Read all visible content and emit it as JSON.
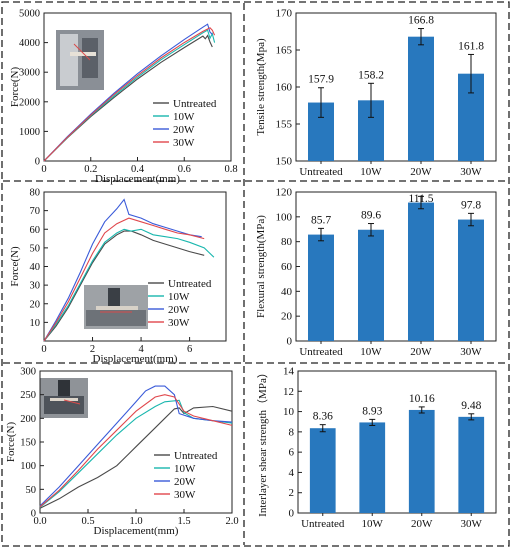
{
  "colors": {
    "bar": "#2878be",
    "untreated": "#4a4a4a",
    "w10": "#19b7ae",
    "w20": "#3a5bd9",
    "w30": "#e0474c",
    "frame": "#222222"
  },
  "chart_data": [
    {
      "type": "line",
      "xlabel": "Displacement(mm)",
      "ylabel": "Force(N)",
      "xlim": [
        0,
        0.8
      ],
      "ylim": [
        0,
        5000
      ],
      "xticks": [
        "0",
        "0.2",
        "0.4",
        "0.6",
        "0.8"
      ],
      "yticks": [
        "0",
        "1000",
        "2000",
        "3000",
        "4000",
        "5000"
      ],
      "legend_position": "bottom-right",
      "series": [
        {
          "name": "Untreated",
          "color_key": "untreated",
          "points": [
            [
              0,
              0
            ],
            [
              0.1,
              780
            ],
            [
              0.2,
              1500
            ],
            [
              0.3,
              2150
            ],
            [
              0.4,
              2770
            ],
            [
              0.5,
              3330
            ],
            [
              0.6,
              3830
            ],
            [
              0.68,
              4220
            ],
            [
              0.69,
              4130
            ],
            [
              0.7,
              4240
            ],
            [
              0.71,
              4020
            ],
            [
              0.72,
              3850
            ]
          ]
        },
        {
          "name": "10W",
          "color_key": "w10",
          "points": [
            [
              0,
              0
            ],
            [
              0.1,
              790
            ],
            [
              0.2,
              1530
            ],
            [
              0.3,
              2200
            ],
            [
              0.4,
              2830
            ],
            [
              0.5,
              3420
            ],
            [
              0.6,
              3930
            ],
            [
              0.68,
              4330
            ],
            [
              0.7,
              4420
            ],
            [
              0.71,
              4150
            ],
            [
              0.72,
              4300
            ],
            [
              0.73,
              4000
            ]
          ]
        },
        {
          "name": "20W",
          "color_key": "w20",
          "points": [
            [
              0,
              0
            ],
            [
              0.1,
              820
            ],
            [
              0.2,
              1580
            ],
            [
              0.3,
              2290
            ],
            [
              0.4,
              2950
            ],
            [
              0.5,
              3550
            ],
            [
              0.6,
              4100
            ],
            [
              0.68,
              4520
            ],
            [
              0.7,
              4620
            ],
            [
              0.71,
              4350
            ],
            [
              0.72,
              4280
            ]
          ]
        },
        {
          "name": "30W",
          "color_key": "w30",
          "points": [
            [
              0,
              0
            ],
            [
              0.1,
              800
            ],
            [
              0.2,
              1550
            ],
            [
              0.3,
              2250
            ],
            [
              0.4,
              2890
            ],
            [
              0.5,
              3480
            ],
            [
              0.6,
              4000
            ],
            [
              0.68,
              4380
            ],
            [
              0.71,
              4500
            ],
            [
              0.72,
              4420
            ],
            [
              0.73,
              4250
            ]
          ]
        }
      ]
    },
    {
      "type": "bar",
      "ylabel": "Tensile strength(Mpa)",
      "categories": [
        "Untreated",
        "10W",
        "20W",
        "30W"
      ],
      "values": [
        157.9,
        158.2,
        166.8,
        161.8
      ],
      "errors": [
        2.0,
        2.3,
        1.1,
        2.6
      ],
      "value_labels": [
        "157.9",
        "158.2",
        "166.8",
        "161.8"
      ],
      "ylim": [
        150,
        170
      ],
      "yticks": [
        "150",
        "155",
        "160",
        "165",
        "170"
      ]
    },
    {
      "type": "line",
      "xlabel": "Displacement(mm)",
      "ylabel": "Force(N)",
      "xlim": [
        0,
        7.5
      ],
      "ylim": [
        0,
        80
      ],
      "xticks": [
        "0",
        "2",
        "4",
        "6"
      ],
      "yticks": [
        "10",
        "20",
        "30",
        "40",
        "50",
        "60",
        "70",
        "80"
      ],
      "legend_position": "bottom-right",
      "series": [
        {
          "name": "Untreated",
          "color_key": "untreated",
          "points": [
            [
              0,
              0
            ],
            [
              0.5,
              8
            ],
            [
              1,
              18
            ],
            [
              1.5,
              30
            ],
            [
              2,
              42
            ],
            [
              2.5,
              52
            ],
            [
              3,
              57
            ],
            [
              3.3,
              59
            ],
            [
              3.6,
              59
            ],
            [
              4,
              57
            ],
            [
              4.5,
              54
            ],
            [
              5,
              52
            ],
            [
              5.5,
              50
            ],
            [
              6,
              48
            ],
            [
              6.6,
              46
            ]
          ]
        },
        {
          "name": "10W",
          "color_key": "w10",
          "points": [
            [
              0,
              0
            ],
            [
              0.5,
              9
            ],
            [
              1,
              19
            ],
            [
              1.5,
              31
            ],
            [
              2,
              43
            ],
            [
              2.5,
              53
            ],
            [
              3,
              58
            ],
            [
              3.3,
              60
            ],
            [
              3.6,
              59
            ],
            [
              4,
              60
            ],
            [
              4.5,
              57
            ],
            [
              5,
              56
            ],
            [
              5.5,
              55
            ],
            [
              6,
              53
            ],
            [
              6.6,
              50
            ],
            [
              7,
              45
            ]
          ]
        },
        {
          "name": "20W",
          "color_key": "w20",
          "points": [
            [
              0,
              0
            ],
            [
              0.5,
              11
            ],
            [
              1,
              23
            ],
            [
              1.5,
              37
            ],
            [
              2,
              52
            ],
            [
              2.5,
              64
            ],
            [
              3,
              71
            ],
            [
              3.3,
              76
            ],
            [
              3.5,
              68
            ],
            [
              4,
              66
            ],
            [
              4.5,
              63
            ],
            [
              5,
              61
            ],
            [
              5.5,
              59
            ],
            [
              6,
              57
            ],
            [
              6.5,
              56
            ]
          ]
        },
        {
          "name": "30W",
          "color_key": "w30",
          "points": [
            [
              0,
              0
            ],
            [
              0.5,
              10
            ],
            [
              1,
              21
            ],
            [
              1.5,
              34
            ],
            [
              2,
              47
            ],
            [
              2.5,
              58
            ],
            [
              3,
              63
            ],
            [
              3.5,
              66
            ],
            [
              4,
              64
            ],
            [
              4.5,
              62
            ],
            [
              5,
              60
            ],
            [
              5.5,
              58
            ],
            [
              6,
              57
            ],
            [
              6.6,
              55
            ]
          ]
        }
      ]
    },
    {
      "type": "bar",
      "ylabel": "Flexural strength(MPa)",
      "categories": [
        "Untreated",
        "10W",
        "20W",
        "30W"
      ],
      "values": [
        85.7,
        89.6,
        111.5,
        97.8
      ],
      "errors": [
        5,
        5,
        5,
        5
      ],
      "value_labels": [
        "85.7",
        "89.6",
        "111.5",
        "97.8"
      ],
      "ylim": [
        0,
        120
      ],
      "yticks": [
        "0",
        "20",
        "40",
        "60",
        "80",
        "100",
        "120"
      ]
    },
    {
      "type": "line",
      "xlabel": "Displacement(mm)",
      "ylabel": "Force(N)",
      "xlim": [
        0,
        2.0
      ],
      "ylim": [
        0,
        300
      ],
      "xticks": [
        "0.0",
        "0.5",
        "1.0",
        "1.5",
        "2.0"
      ],
      "yticks": [
        "0",
        "50",
        "100",
        "150",
        "200",
        "250",
        "300"
      ],
      "legend_position": "bottom-right",
      "series": [
        {
          "name": "Untreated",
          "color_key": "untreated",
          "points": [
            [
              0,
              10
            ],
            [
              0.2,
              30
            ],
            [
              0.4,
              55
            ],
            [
              0.6,
              75
            ],
            [
              0.8,
              100
            ],
            [
              1.0,
              140
            ],
            [
              1.2,
              180
            ],
            [
              1.3,
              200
            ],
            [
              1.4,
              220
            ],
            [
              1.45,
              222
            ],
            [
              1.5,
              210
            ],
            [
              1.6,
              222
            ],
            [
              1.8,
              225
            ],
            [
              2.0,
              215
            ]
          ]
        },
        {
          "name": "10W",
          "color_key": "w10",
          "points": [
            [
              0,
              12
            ],
            [
              0.2,
              45
            ],
            [
              0.4,
              85
            ],
            [
              0.6,
              125
            ],
            [
              0.8,
              165
            ],
            [
              1.0,
              200
            ],
            [
              1.2,
              225
            ],
            [
              1.3,
              235
            ],
            [
              1.45,
              238
            ],
            [
              1.5,
              212
            ],
            [
              1.6,
              200
            ],
            [
              1.8,
              195
            ],
            [
              2.0,
              190
            ]
          ]
        },
        {
          "name": "20W",
          "color_key": "w20",
          "points": [
            [
              0,
              15
            ],
            [
              0.2,
              55
            ],
            [
              0.4,
              100
            ],
            [
              0.6,
              145
            ],
            [
              0.8,
              190
            ],
            [
              1.0,
              235
            ],
            [
              1.1,
              258
            ],
            [
              1.2,
              268
            ],
            [
              1.3,
              268
            ],
            [
              1.4,
              250
            ],
            [
              1.45,
              210
            ],
            [
              1.6,
              200
            ],
            [
              1.8,
              195
            ],
            [
              2.0,
              192
            ]
          ]
        },
        {
          "name": "30W",
          "color_key": "w30",
          "points": [
            [
              0,
              13
            ],
            [
              0.2,
              48
            ],
            [
              0.4,
              90
            ],
            [
              0.6,
              135
            ],
            [
              0.8,
              175
            ],
            [
              1.0,
              215
            ],
            [
              1.2,
              245
            ],
            [
              1.3,
              250
            ],
            [
              1.4,
              245
            ],
            [
              1.5,
              215
            ],
            [
              1.6,
              205
            ],
            [
              1.8,
              195
            ],
            [
              2.0,
              185
            ]
          ]
        }
      ]
    },
    {
      "type": "bar",
      "ylabel": "Interlayer shear strength（MPa）",
      "categories": [
        "Untreated",
        "10W",
        "20W",
        "30W"
      ],
      "values": [
        8.36,
        8.93,
        10.16,
        9.48
      ],
      "errors": [
        0.35,
        0.3,
        0.3,
        0.3
      ],
      "value_labels": [
        "8.36",
        "8.93",
        "10.16",
        "9.48"
      ],
      "ylim": [
        0,
        14
      ],
      "yticks": [
        "0",
        "2",
        "4",
        "6",
        "8",
        "10",
        "12",
        "14"
      ]
    }
  ]
}
